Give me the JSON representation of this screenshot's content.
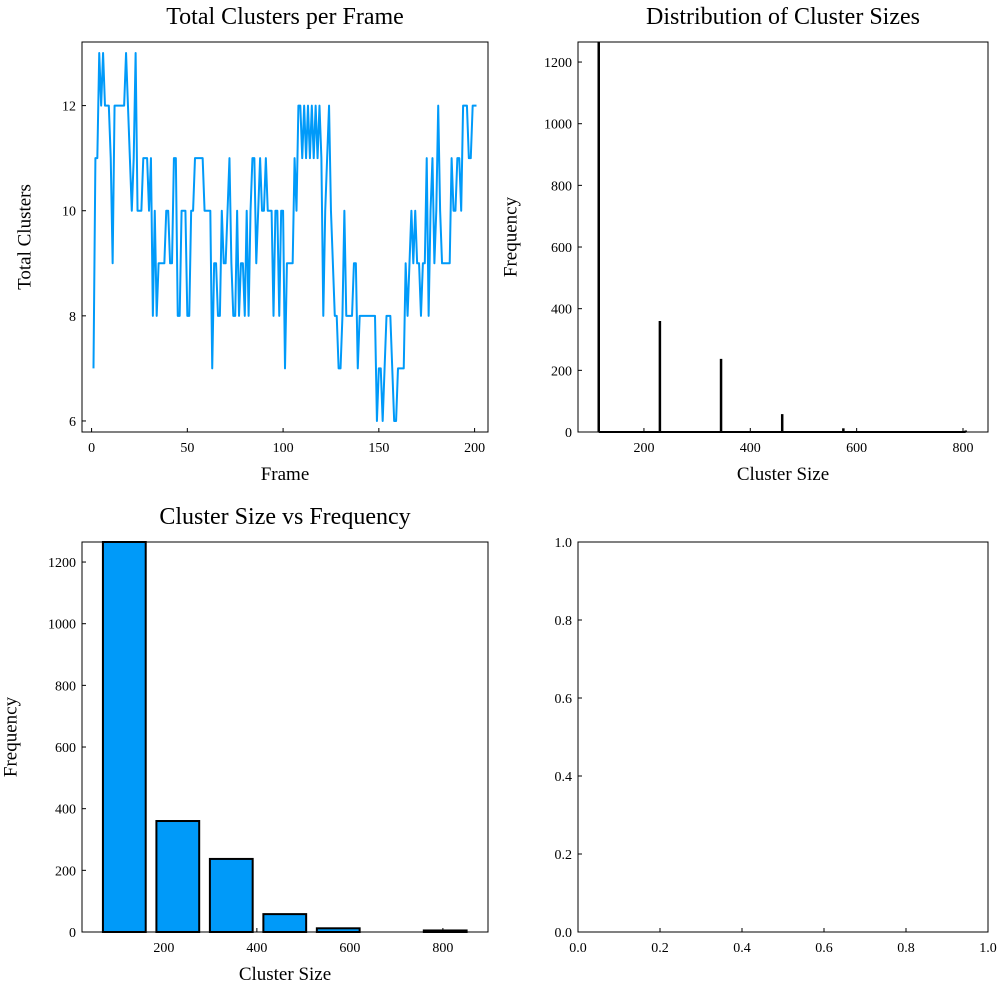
{
  "chart_data": [
    {
      "type": "line",
      "title": "Total Clusters per Frame",
      "x_label": "Frame",
      "y_label": "Total Clusters",
      "color": "#009af9",
      "grid": false,
      "x": [
        1,
        2,
        3,
        4,
        5,
        6,
        7,
        8,
        9,
        10,
        11,
        12,
        13,
        14,
        15,
        16,
        17,
        18,
        19,
        20,
        21,
        22,
        23,
        24,
        25,
        26,
        27,
        28,
        29,
        30,
        31,
        32,
        33,
        34,
        35,
        36,
        37,
        38,
        39,
        40,
        41,
        42,
        43,
        44,
        45,
        46,
        47,
        48,
        49,
        50,
        51,
        52,
        53,
        54,
        55,
        56,
        57,
        58,
        59,
        60,
        61,
        62,
        63,
        64,
        65,
        66,
        67,
        68,
        69,
        70,
        71,
        72,
        73,
        74,
        75,
        76,
        77,
        78,
        79,
        80,
        81,
        82,
        83,
        84,
        85,
        86,
        87,
        88,
        89,
        90,
        91,
        92,
        93,
        94,
        95,
        96,
        97,
        98,
        99,
        100,
        101,
        102,
        103,
        104,
        105,
        106,
        107,
        108,
        109,
        110,
        111,
        112,
        113,
        114,
        115,
        116,
        117,
        118,
        119,
        120,
        121,
        122,
        123,
        124,
        125,
        126,
        127,
        128,
        129,
        130,
        131,
        132,
        133,
        134,
        135,
        136,
        137,
        138,
        139,
        140,
        141,
        142,
        143,
        144,
        145,
        146,
        147,
        148,
        149,
        150,
        151,
        152,
        153,
        154,
        155,
        156,
        157,
        158,
        159,
        160,
        161,
        162,
        163,
        164,
        165,
        166,
        167,
        168,
        169,
        170,
        171,
        172,
        173,
        174,
        175,
        176,
        177,
        178,
        179,
        180,
        181,
        182,
        183,
        184,
        185,
        186,
        187,
        188,
        189,
        190,
        191,
        192,
        193,
        194,
        195,
        196,
        197,
        198,
        199,
        200,
        201
      ],
      "values": [
        7,
        11,
        11,
        13,
        12,
        13,
        12,
        12,
        12,
        11,
        9,
        12,
        12,
        12,
        12,
        12,
        12,
        13,
        12,
        11,
        10,
        11,
        13,
        10,
        10,
        10,
        11,
        11,
        11,
        10,
        11,
        8,
        10,
        8,
        9,
        9,
        9,
        9,
        10,
        10,
        9,
        9,
        11,
        11,
        8,
        8,
        10,
        10,
        10,
        8,
        8,
        10,
        10,
        11,
        11,
        11,
        11,
        11,
        10,
        10,
        10,
        10,
        7,
        9,
        9,
        8,
        8,
        10,
        9,
        9,
        10,
        11,
        9,
        8,
        8,
        10,
        8,
        9,
        9,
        8,
        10,
        8,
        10,
        11,
        11,
        9,
        10,
        11,
        10,
        10,
        11,
        10,
        10,
        10,
        8,
        10,
        10,
        8,
        10,
        10,
        7,
        9,
        9,
        9,
        9,
        11,
        10,
        12,
        12,
        11,
        12,
        11,
        12,
        11,
        12,
        11,
        12,
        11,
        12,
        11,
        8,
        10,
        11,
        12,
        10,
        9,
        8,
        8,
        7,
        7,
        8,
        10,
        8,
        8,
        8,
        8,
        9,
        9,
        7,
        8,
        8,
        8,
        8,
        8,
        8,
        8,
        8,
        8,
        6,
        7,
        7,
        6,
        7,
        8,
        8,
        8,
        7,
        6,
        6,
        7,
        7,
        7,
        7,
        9,
        8,
        9,
        10,
        9,
        10,
        9,
        9,
        8,
        9,
        9,
        11,
        8,
        10,
        11,
        9,
        10,
        12,
        10,
        9,
        9,
        9,
        9,
        9,
        11,
        10,
        10,
        11,
        11,
        10,
        12,
        12,
        12,
        11,
        11,
        12,
        12,
        12
      ],
      "xlim": [
        -5,
        207
      ],
      "ylim": [
        5.79,
        13.21
      ],
      "xticks": [
        0,
        50,
        100,
        150,
        200
      ],
      "yticks": [
        6,
        8,
        10,
        12
      ]
    },
    {
      "type": "stem",
      "title": "Distribution of Cluster Sizes",
      "x_label": "Cluster Size",
      "y_label": "Frequency",
      "color": "#000000",
      "grid": false,
      "x": [
        115,
        230,
        345,
        460,
        575,
        805
      ],
      "values": [
        1265,
        360,
        237,
        58,
        12,
        5
      ],
      "xlim": [
        76,
        847
      ],
      "ylim": [
        0,
        1265
      ],
      "xticks": [
        200,
        400,
        600,
        800
      ],
      "yticks": [
        0,
        200,
        400,
        600,
        800,
        1000,
        1200
      ]
    },
    {
      "type": "bar",
      "title": "Cluster Size vs Frequency",
      "x_label": "Cluster Size",
      "y_label": "Frequency",
      "color": "#009af9",
      "grid": false,
      "x": [
        115,
        230,
        345,
        460,
        575,
        805
      ],
      "values": [
        1265,
        360,
        237,
        58,
        12,
        5
      ],
      "xlim": [
        24,
        897
      ],
      "ylim": [
        0,
        1265
      ],
      "xticks": [
        200,
        400,
        600,
        800
      ],
      "yticks": [
        0,
        200,
        400,
        600,
        800,
        1000,
        1200
      ]
    },
    {
      "type": "empty",
      "grid": false,
      "xlim": [
        0,
        1
      ],
      "ylim": [
        0,
        1
      ],
      "xticks": [
        {
          "value": 0,
          "label": "0.0"
        },
        0.2,
        0.4,
        0.6,
        0.8,
        {
          "value": 1,
          "label": "1.0"
        }
      ],
      "yticks": [
        {
          "value": 0,
          "label": "0.0"
        },
        0.2,
        0.4,
        0.6,
        0.8,
        {
          "value": 1,
          "label": "1.0"
        }
      ]
    }
  ]
}
